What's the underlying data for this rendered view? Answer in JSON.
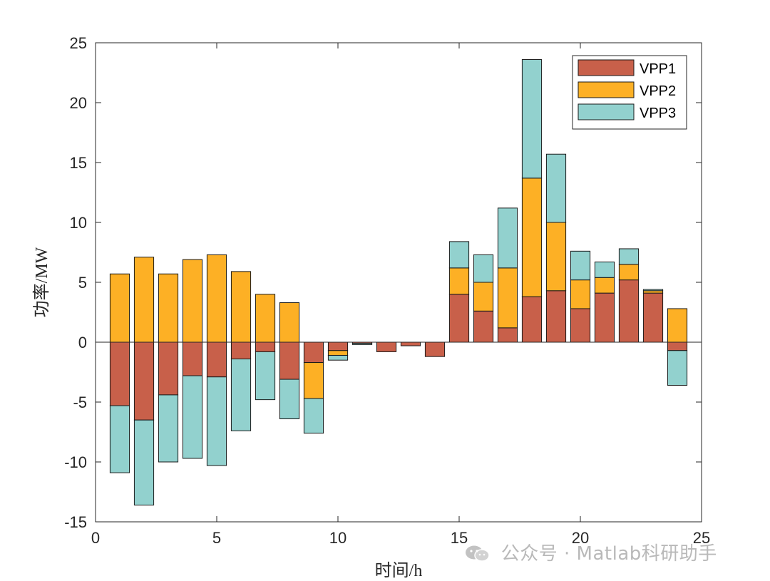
{
  "chart_data": {
    "type": "bar",
    "stacked": true,
    "title": "",
    "xlabel": "时间/h",
    "ylabel": "功率/MW",
    "xlim": [
      0,
      25
    ],
    "ylim": [
      -15,
      25
    ],
    "xticks": [
      0,
      5,
      10,
      15,
      20,
      25
    ],
    "yticks": [
      -15,
      -10,
      -5,
      0,
      5,
      10,
      15,
      20,
      25
    ],
    "x": [
      1,
      2,
      3,
      4,
      5,
      6,
      7,
      8,
      9,
      10,
      11,
      12,
      13,
      14,
      15,
      16,
      17,
      18,
      19,
      20,
      21,
      22,
      23,
      24
    ],
    "legend_position": "top-right",
    "series": [
      {
        "name": "VPP1",
        "color": "#C8604A",
        "values": [
          -5.3,
          -6.5,
          -4.4,
          -2.8,
          -2.9,
          -1.4,
          -0.8,
          -3.1,
          -1.7,
          -0.7,
          -0.1,
          -0.8,
          -0.3,
          -1.2,
          4.0,
          2.6,
          1.2,
          3.8,
          4.3,
          2.8,
          4.1,
          5.2,
          4.1,
          -0.7
        ]
      },
      {
        "name": "VPP2",
        "color": "#FDB025",
        "values": [
          5.7,
          7.1,
          5.7,
          6.9,
          7.3,
          5.9,
          4.0,
          3.3,
          -3.0,
          -0.4,
          0,
          0,
          0,
          0,
          2.2,
          2.4,
          5.0,
          9.9,
          5.7,
          2.4,
          1.3,
          1.3,
          0.2,
          2.8
        ]
      },
      {
        "name": "VPP3",
        "color": "#92D1CE",
        "values": [
          -5.6,
          -7.1,
          -5.6,
          -6.9,
          -7.4,
          -6.0,
          -4.0,
          -3.3,
          -2.9,
          -0.4,
          -0.1,
          0,
          0,
          0,
          2.2,
          2.3,
          5.0,
          9.9,
          5.7,
          2.4,
          1.3,
          1.3,
          0.1,
          -2.9
        ]
      }
    ]
  },
  "legend": {
    "items": [
      {
        "label": "VPP1",
        "color": "#C8604A"
      },
      {
        "label": "VPP2",
        "color": "#FDB025"
      },
      {
        "label": "VPP3",
        "color": "#92D1CE"
      }
    ]
  },
  "watermark": {
    "text": "公众号 · Matlab科研助手",
    "icon": "wechat-icon"
  }
}
